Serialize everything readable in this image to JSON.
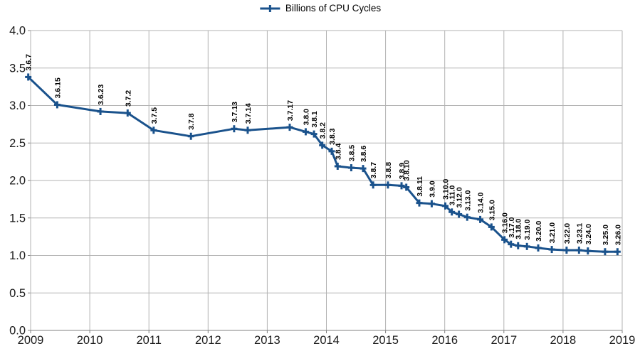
{
  "chart_data": {
    "type": "line",
    "title": "",
    "legend": "Billions of CPU Cycles",
    "legend_position": "top-center",
    "xlim": [
      2009,
      2019
    ],
    "ylim": [
      0,
      4.0
    ],
    "x_tick_step": 1,
    "y_tick_step": 0.5,
    "x_tick_labels": [
      "2009",
      "2010",
      "2011",
      "2012",
      "2013",
      "2014",
      "2015",
      "2016",
      "2017",
      "2018",
      "2019"
    ],
    "y_tick_labels": [
      "0.0",
      "0.5",
      "1.0",
      "1.5",
      "2.0",
      "2.5",
      "3.0",
      "3.5",
      "4.0"
    ],
    "grid": true,
    "colors": {
      "series": "#1a528c",
      "grid": "#b3b3b3",
      "axis": "#808080",
      "tick_label": "#1a1a1a",
      "data_label": "#000000"
    },
    "series": [
      {
        "name": "Billions of CPU Cycles",
        "marker": "plus",
        "points": [
          {
            "label": "3.6.7",
            "x": 2008.96,
            "y": 3.38
          },
          {
            "label": "3.6.15",
            "x": 2009.45,
            "y": 3.01
          },
          {
            "label": "3.6.23",
            "x": 2010.18,
            "y": 2.92
          },
          {
            "label": "3.7.2",
            "x": 2010.64,
            "y": 2.9
          },
          {
            "label": "3.7.5",
            "x": 2011.08,
            "y": 2.67
          },
          {
            "label": "3.7.8",
            "x": 2011.71,
            "y": 2.59
          },
          {
            "label": "3.7.13",
            "x": 2012.44,
            "y": 2.69
          },
          {
            "label": "3.7.14",
            "x": 2012.67,
            "y": 2.67
          },
          {
            "label": "3.7.17",
            "x": 2013.38,
            "y": 2.71
          },
          {
            "label": "3.8.0",
            "x": 2013.65,
            "y": 2.65
          },
          {
            "label": "3.8.1",
            "x": 2013.79,
            "y": 2.62
          },
          {
            "label": "3.8.2",
            "x": 2013.93,
            "y": 2.47
          },
          {
            "label": "3.8.3",
            "x": 2014.09,
            "y": 2.39
          },
          {
            "label": "3.8.4",
            "x": 2014.19,
            "y": 2.19
          },
          {
            "label": "3.8.5",
            "x": 2014.42,
            "y": 2.17
          },
          {
            "label": "3.8.6",
            "x": 2014.62,
            "y": 2.16
          },
          {
            "label": "3.8.7",
            "x": 2014.79,
            "y": 1.94
          },
          {
            "label": "3.8.8",
            "x": 2015.04,
            "y": 1.94
          },
          {
            "label": "3.8.9",
            "x": 2015.27,
            "y": 1.93
          },
          {
            "label": "3.8.10",
            "x": 2015.35,
            "y": 1.91
          },
          {
            "label": "3.8.11",
            "x": 2015.57,
            "y": 1.7
          },
          {
            "label": "3.9.0",
            "x": 2015.78,
            "y": 1.69
          },
          {
            "label": "3.10.0",
            "x": 2016.01,
            "y": 1.66
          },
          {
            "label": "3.11.0",
            "x": 2016.12,
            "y": 1.58
          },
          {
            "label": "3.12.0",
            "x": 2016.24,
            "y": 1.55
          },
          {
            "label": "3.13.0",
            "x": 2016.38,
            "y": 1.51
          },
          {
            "label": "3.14.0",
            "x": 2016.6,
            "y": 1.48
          },
          {
            "label": "3.15.0",
            "x": 2016.79,
            "y": 1.38
          },
          {
            "label": "3.16.0",
            "x": 2017.01,
            "y": 1.21
          },
          {
            "label": "3.17.0",
            "x": 2017.12,
            "y": 1.15
          },
          {
            "label": "3.18.0",
            "x": 2017.24,
            "y": 1.13
          },
          {
            "label": "3.19.0",
            "x": 2017.39,
            "y": 1.12
          },
          {
            "label": "3.20.0",
            "x": 2017.58,
            "y": 1.1
          },
          {
            "label": "3.21.0",
            "x": 2017.81,
            "y": 1.08
          },
          {
            "label": "3.22.0",
            "x": 2018.06,
            "y": 1.07
          },
          {
            "label": "3.23.1",
            "x": 2018.27,
            "y": 1.07
          },
          {
            "label": "3.24.0",
            "x": 2018.42,
            "y": 1.06
          },
          {
            "label": "3.25.0",
            "x": 2018.71,
            "y": 1.05
          },
          {
            "label": "3.26.0",
            "x": 2018.92,
            "y": 1.05
          }
        ]
      }
    ]
  }
}
